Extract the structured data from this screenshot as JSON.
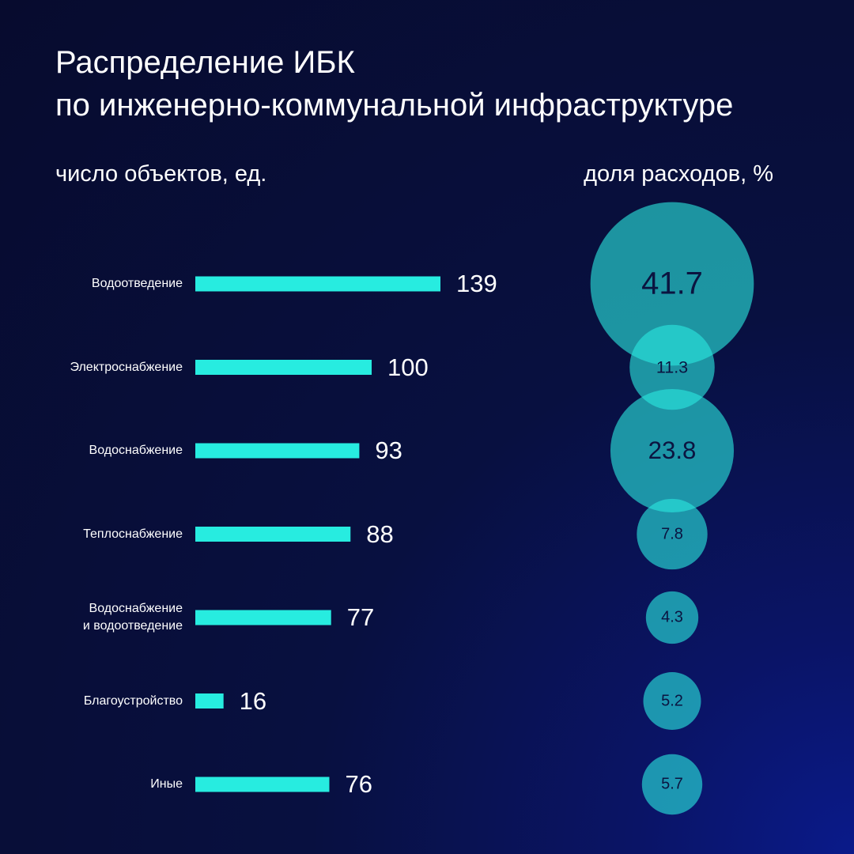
{
  "chart_data": [
    {
      "type": "bar",
      "title": "Распределение ИБК\nпо инженерно-коммунальной инфраструктуре",
      "subtitle": "число объектов, ед.",
      "categories": [
        "Водоотведение",
        "Электроснабжение",
        "Водоснабжение",
        "Теплоснабжение",
        "Водоснабжение\nи водоотведение",
        "Благоустройство",
        "Иные"
      ],
      "values": [
        139,
        100,
        93,
        88,
        77,
        16,
        76
      ],
      "color": "#27ece0"
    },
    {
      "type": "bubble",
      "subtitle": "доля расходов, %",
      "values": [
        41.7,
        11.3,
        23.8,
        7.8,
        4.3,
        5.2,
        5.7
      ],
      "color": "#2ae6de"
    }
  ]
}
